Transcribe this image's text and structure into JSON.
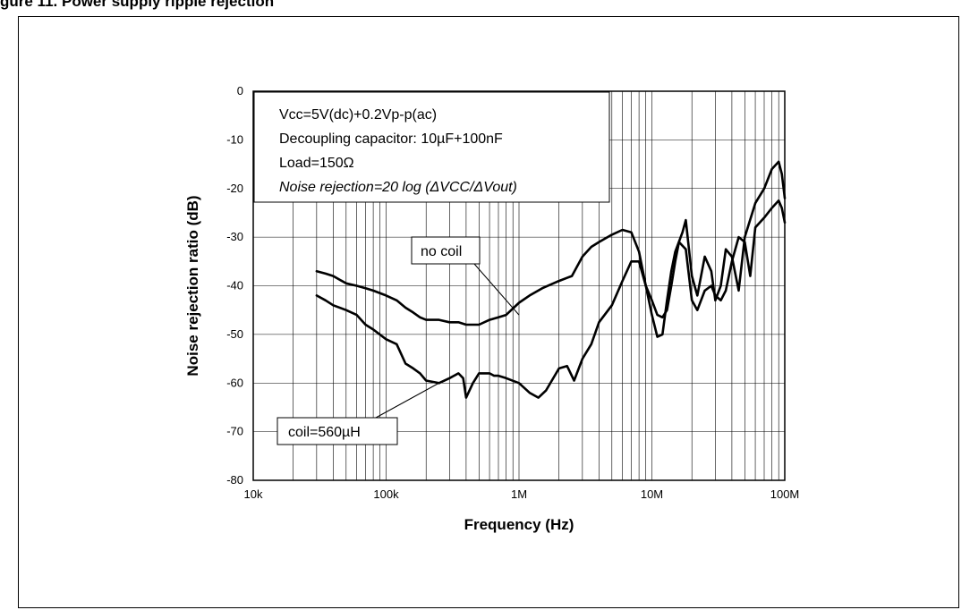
{
  "header": {
    "text": "gure 11. Power supply ripple rejection"
  },
  "chart_data": {
    "type": "line",
    "xscale": "log",
    "xlim": [
      10000,
      100000000
    ],
    "ylim": [
      -80,
      0
    ],
    "xlabel": "Frequency  (Hz)",
    "ylabel": "Noise rejection ratio  (dB)",
    "x_ticks": [
      10000,
      100000,
      1000000,
      10000000,
      100000000
    ],
    "x_tick_labels": [
      "10k",
      "100k",
      "1M",
      "10M",
      "100M"
    ],
    "y_ticks": [
      0,
      -10,
      -20,
      -30,
      -40,
      -50,
      -60,
      -70,
      -80
    ],
    "y_tick_labels": [
      "0",
      "-10",
      "-20",
      "-30",
      "-40",
      "-50",
      "-60",
      "-70",
      "-80"
    ],
    "grid": true,
    "conditions": [
      "Vcc=5V(dc)+0.2Vp-p(ac)",
      "Decoupling capacitor: 10µF+100nF",
      "Load=150Ω",
      "Noise rejection=20 log (ΔVCC/ΔVout)"
    ],
    "series": [
      {
        "name": "no coil",
        "x": [
          30000,
          35000,
          40000,
          50000,
          60000,
          70000,
          80000,
          100000,
          120000,
          140000,
          160000,
          180000,
          200000,
          250000,
          300000,
          350000,
          400000,
          500000,
          600000,
          700000,
          800000,
          1000000,
          1200000,
          1500000,
          2000000,
          2500000,
          3000000,
          3500000,
          4000000,
          5000000,
          6000000,
          7000000,
          8000000,
          9000000,
          10000000,
          11000000,
          12000000,
          13000000,
          14000000,
          15000000,
          16000000,
          18000000,
          20000000,
          22000000,
          25000000,
          28000000,
          30000000,
          33000000,
          36000000,
          40000000,
          45000000,
          50000000,
          55000000,
          60000000,
          70000000,
          80000000,
          90000000,
          95000000,
          100000000
        ],
        "y": [
          -37,
          -37.5,
          -38,
          -39.5,
          -40,
          -40.5,
          -41,
          -42,
          -43,
          -44.5,
          -45.5,
          -46.5,
          -47,
          -47,
          -47.5,
          -47.5,
          -48,
          -48,
          -47,
          -46.5,
          -46,
          -43.5,
          -42,
          -40.5,
          -39,
          -38,
          -34,
          -32,
          -31,
          -29.5,
          -28.5,
          -29,
          -33,
          -40,
          -43,
          -46,
          -46.5,
          -45,
          -40,
          -35,
          -31,
          -32.5,
          -43,
          -45,
          -41,
          -40,
          -42,
          -43,
          -41,
          -35,
          -30,
          -31,
          -38,
          -28,
          -26,
          -24,
          -22.5,
          -24,
          -27
        ]
      },
      {
        "name": "coil=560µH",
        "x": [
          30000,
          35000,
          40000,
          50000,
          60000,
          70000,
          80000,
          100000,
          120000,
          140000,
          160000,
          180000,
          200000,
          250000,
          300000,
          350000,
          380000,
          400000,
          450000,
          500000,
          550000,
          600000,
          650000,
          700000,
          800000,
          1000000,
          1200000,
          1400000,
          1600000,
          2000000,
          2300000,
          2600000,
          3000000,
          3500000,
          4000000,
          5000000,
          6000000,
          7000000,
          8000000,
          9000000,
          10000000,
          11000000,
          12000000,
          13000000,
          14000000,
          15000000,
          17000000,
          18000000,
          20000000,
          22000000,
          25000000,
          28000000,
          30000000,
          33000000,
          36000000,
          40000000,
          45000000,
          50000000,
          60000000,
          70000000,
          80000000,
          90000000,
          95000000,
          100000000
        ],
        "y": [
          -42,
          -43,
          -44,
          -45,
          -46,
          -48,
          -49,
          -51,
          -52,
          -56,
          -57,
          -58,
          -59.5,
          -60,
          -59,
          -58,
          -59,
          -63,
          -60,
          -58,
          -58,
          -58,
          -58.5,
          -58.5,
          -59,
          -60,
          -62,
          -63,
          -61.5,
          -57,
          -56.5,
          -59.5,
          -55,
          -52,
          -47.5,
          -44,
          -39,
          -35,
          -35,
          -40,
          -46,
          -50.5,
          -50,
          -43,
          -37,
          -33,
          -29,
          -26.5,
          -38,
          -42,
          -34,
          -37,
          -43,
          -40,
          -32.5,
          -34,
          -41,
          -30,
          -23,
          -20,
          -16,
          -14.5,
          -17,
          -22
        ]
      }
    ],
    "annotations": [
      {
        "text": "no coil",
        "points_to": [
          1000000,
          -46
        ]
      },
      {
        "text": "coil=560µH",
        "points_to": [
          250000,
          -60
        ]
      }
    ]
  }
}
